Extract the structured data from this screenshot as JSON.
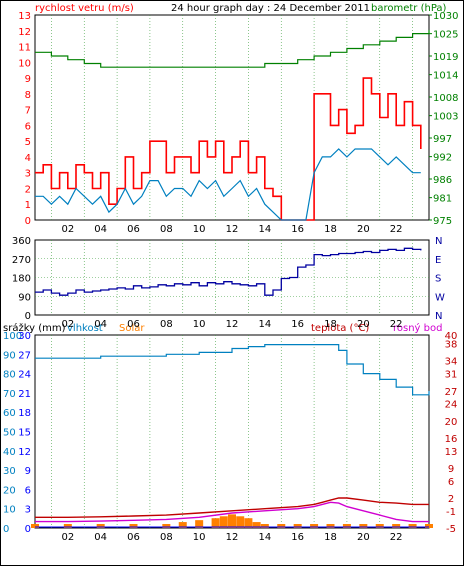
{
  "header": {
    "wind_label": "rychlost vetru (m/s)",
    "title": "24 hour graph day : 24 December 2011",
    "baro_label": "barometr (hPa)"
  },
  "legend": {
    "rain": "srážky (mm)",
    "humidity": "vlhkost",
    "solar": "Solar",
    "temp": "teplota (°C)",
    "dew": "rosný bod"
  },
  "colors": {
    "wind_gust": "#ff0000",
    "wind_avg": "#0080c0",
    "baro": "#008000",
    "dir": "#0000a0",
    "humidity": "#0080c0",
    "temp": "#c00000",
    "dew": "#d000d0",
    "solar": "#ff8000",
    "rain": "#0000ff"
  },
  "chart_data": [
    {
      "type": "line",
      "title": "24 hour graph day : 24 December 2011",
      "xlabel": "",
      "x_ticks": [
        "02",
        "04",
        "06",
        "08",
        "10",
        "12",
        "14",
        "16",
        "18",
        "20",
        "22"
      ],
      "xlim": [
        0,
        24
      ],
      "y_left": {
        "label": "rychlost vetru (m/s)",
        "ticks": [
          "0",
          "1",
          "2",
          "3",
          "4",
          "5",
          "6",
          "7",
          "8",
          "9",
          "10",
          "11",
          "12",
          "13"
        ],
        "ylim": [
          0,
          13
        ]
      },
      "y_right": {
        "label": "barometr (hPa)",
        "ticks": [
          "975",
          "981",
          "986",
          "992",
          "997",
          "1003",
          "1008",
          "1014",
          "1019",
          "1025",
          "1030"
        ],
        "ylim": [
          975,
          1030
        ]
      },
      "series": [
        {
          "axis": "left",
          "x": [
            0,
            0.5,
            1,
            1.5,
            2,
            2.5,
            3,
            3.5,
            4,
            4.5,
            5,
            5.5,
            6,
            6.5,
            7,
            7.5,
            8,
            8.5,
            9,
            9.5,
            10,
            10.5,
            11,
            11.5,
            12,
            12.5,
            13,
            13.5,
            14,
            14.5,
            15,
            15.5,
            16,
            16.5,
            17,
            17.5,
            18,
            18.5,
            19,
            19.5,
            20,
            20.5,
            21,
            21.5,
            22,
            22.5,
            23,
            23.5
          ],
          "values": [
            3,
            3.5,
            2,
            3,
            2,
            3.5,
            3,
            2,
            3,
            1,
            2,
            4,
            2,
            3,
            5,
            5,
            3,
            4,
            4,
            3,
            5,
            4,
            5,
            3,
            4,
            5,
            3,
            4,
            2,
            1.5,
            0,
            0,
            0,
            0,
            8,
            8,
            6,
            7,
            5.5,
            6,
            9,
            8,
            6.5,
            8,
            6,
            7.5,
            6,
            4.5
          ]
        },
        {
          "axis": "left",
          "x": [
            0,
            0.5,
            1,
            1.5,
            2,
            2.5,
            3,
            3.5,
            4,
            4.5,
            5,
            5.5,
            6,
            6.5,
            7,
            7.5,
            8,
            8.5,
            9,
            9.5,
            10,
            10.5,
            11,
            11.5,
            12,
            12.5,
            13,
            13.5,
            14,
            14.5,
            15,
            15.5,
            16,
            16.5,
            17,
            17.5,
            18,
            18.5,
            19,
            19.5,
            20,
            20.5,
            21,
            21.5,
            22,
            22.5,
            23,
            23.5
          ],
          "values": [
            1.5,
            1.5,
            1,
            1.5,
            1,
            2,
            1.5,
            1,
            1.5,
            0.5,
            1,
            2,
            1,
            1.5,
            2.5,
            2.5,
            1.5,
            2,
            2,
            1.5,
            2.5,
            2,
            2.5,
            1.5,
            2,
            2.5,
            1.5,
            2,
            1,
            0.5,
            0,
            0,
            0,
            0,
            3,
            4,
            4,
            4.5,
            4,
            4.5,
            4.5,
            4.5,
            4,
            3.5,
            4,
            3.5,
            3,
            3
          ]
        },
        {
          "axis": "right",
          "x": [
            0,
            1,
            2,
            3,
            4,
            5,
            6,
            7,
            8,
            9,
            10,
            11,
            12,
            13,
            14,
            15,
            16,
            17,
            18,
            19,
            20,
            21,
            22,
            23,
            24
          ],
          "values": [
            1020,
            1019,
            1018,
            1017,
            1016,
            1016,
            1016,
            1016,
            1016,
            1016,
            1016,
            1016,
            1016,
            1016,
            1017,
            1017,
            1018,
            1019,
            1020,
            1021,
            1022,
            1023,
            1024,
            1025,
            1026
          ]
        }
      ]
    },
    {
      "type": "line",
      "y_left": {
        "ticks": [
          "0",
          "90",
          "180",
          "270",
          "360"
        ],
        "ylim": [
          0,
          360
        ]
      },
      "y_right": {
        "ticks": [
          "N",
          "W",
          "S",
          "E",
          "N"
        ]
      },
      "series": [
        {
          "x": [
            0,
            0.5,
            1,
            1.5,
            2,
            2.5,
            3,
            3.5,
            4,
            4.5,
            5,
            5.5,
            6,
            6.5,
            7,
            7.5,
            8,
            8.5,
            9,
            9.5,
            10,
            10.5,
            11,
            11.5,
            12,
            12.5,
            13,
            13.5,
            14,
            14.5,
            15,
            15.5,
            16,
            16.5,
            17,
            17.5,
            18,
            18.5,
            19,
            19.5,
            20,
            20.5,
            21,
            21.5,
            22,
            22.5,
            23,
            23.5
          ],
          "values": [
            110,
            120,
            105,
            95,
            105,
            120,
            110,
            115,
            120,
            125,
            130,
            125,
            140,
            130,
            135,
            145,
            140,
            150,
            145,
            155,
            140,
            155,
            150,
            160,
            150,
            145,
            140,
            150,
            95,
            120,
            175,
            180,
            230,
            240,
            290,
            285,
            290,
            295,
            295,
            300,
            305,
            300,
            310,
            315,
            310,
            320,
            315,
            310
          ]
        }
      ]
    },
    {
      "type": "line",
      "y_left": {
        "label": "srážky (mm)",
        "ticks": [
          "0",
          "10",
          "20",
          "30",
          "40",
          "50",
          "60",
          "70",
          "80",
          "90",
          "100"
        ],
        "ylim": [
          0,
          100
        ]
      },
      "y_left2": {
        "label": "vlhkost",
        "ticks": [
          "0",
          "3",
          "6",
          "9",
          "12",
          "15",
          "18",
          "21",
          "24",
          "27",
          "30"
        ],
        "ylim": [
          0,
          30
        ]
      },
      "y_right": {
        "label": "teplota (°C)",
        "ticks": [
          "-5",
          "-1",
          "2",
          "6",
          "9",
          "13",
          "16",
          "20",
          "24",
          "27",
          "31",
          "34",
          "38",
          "40"
        ],
        "ylim": [
          -5,
          40
        ]
      },
      "series": [
        {
          "name": "vlhkost",
          "axis": "left",
          "x": [
            0,
            2,
            4,
            6,
            8,
            10,
            12,
            13,
            14,
            15,
            16,
            17,
            18,
            18.5,
            19,
            20,
            21,
            22,
            23,
            24
          ],
          "values": [
            88,
            88,
            89,
            89,
            90,
            91,
            93,
            94,
            95,
            95,
            95,
            95,
            95,
            92,
            85,
            80,
            77,
            73,
            69,
            71
          ]
        },
        {
          "name": "teplota (°C)",
          "axis": "right",
          "x": [
            0,
            2,
            4,
            6,
            8,
            10,
            12,
            14,
            16,
            17,
            17.5,
            18,
            18.5,
            19,
            20,
            21,
            22,
            23,
            24
          ],
          "values": [
            -2.5,
            -2.5,
            -2.4,
            -2.2,
            -2,
            -1.5,
            -1,
            -0.5,
            0,
            0.5,
            1,
            1.5,
            2,
            2,
            1.5,
            1,
            0.8,
            0.5,
            0.5
          ]
        },
        {
          "name": "rosný bod",
          "axis": "right",
          "x": [
            0,
            2,
            4,
            6,
            8,
            10,
            12,
            14,
            16,
            17,
            17.5,
            18,
            18.5,
            19,
            20,
            21,
            22,
            23,
            24
          ],
          "values": [
            -3.5,
            -3.5,
            -3.4,
            -3.2,
            -3,
            -2.5,
            -1.5,
            -1,
            -0.5,
            0,
            0.5,
            1,
            0.8,
            0,
            -1,
            -2,
            -3,
            -3.5,
            -3.5
          ]
        },
        {
          "name": "Solar",
          "axis": "left",
          "x": [
            0,
            2,
            4,
            6,
            8,
            9,
            10,
            11,
            11.5,
            12,
            12.5,
            13,
            13.5,
            14,
            15,
            16,
            17,
            18,
            19,
            20,
            21,
            22,
            23,
            24
          ],
          "values": [
            0,
            0,
            0,
            0,
            0,
            1,
            2,
            3,
            4,
            5,
            4,
            3,
            1,
            0,
            0,
            0,
            0,
            0,
            0,
            0,
            0,
            0,
            0,
            0
          ]
        }
      ]
    }
  ]
}
